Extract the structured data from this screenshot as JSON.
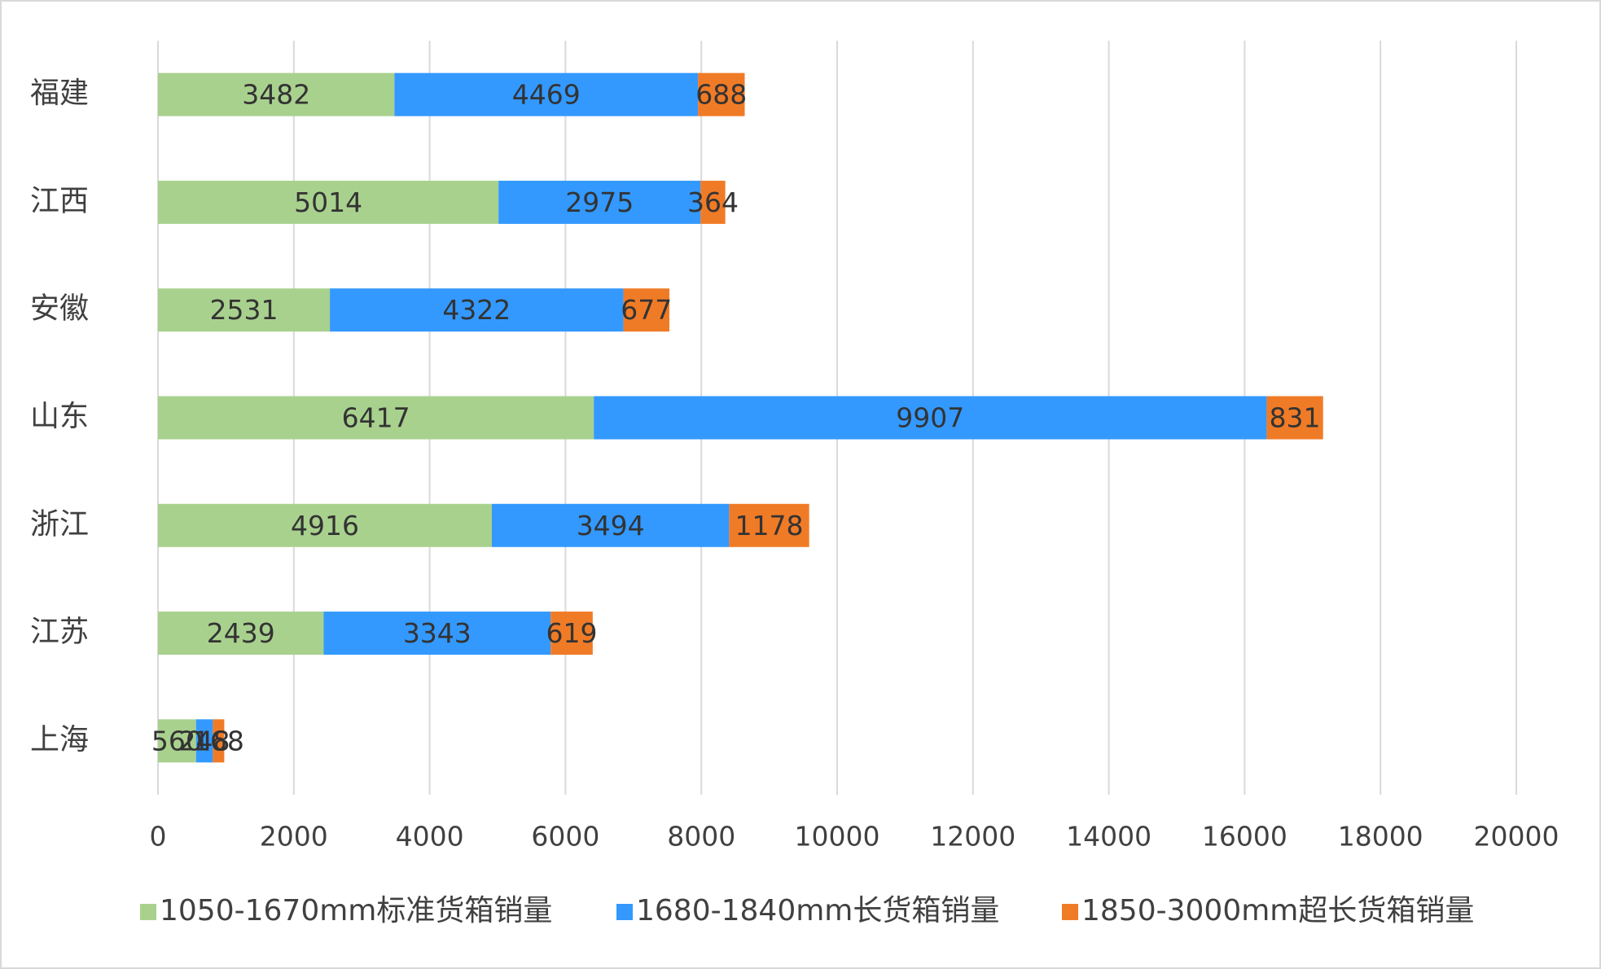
{
  "chart_data": {
    "type": "bar",
    "orientation": "horizontal",
    "stacked": true,
    "categories": [
      "福建",
      "江西",
      "安徽",
      "山东",
      "浙江",
      "江苏",
      "上海"
    ],
    "series": [
      {
        "name": "1050-1670mm标准货箱销量",
        "color": "#a9d18e",
        "values": [
          3482,
          5014,
          2531,
          6417,
          4916,
          2439,
          560
        ]
      },
      {
        "name": "1680-1840mm长货箱销量",
        "color": "#3399ff",
        "values": [
          4469,
          2975,
          4322,
          9907,
          3494,
          3343,
          248
        ]
      },
      {
        "name": "1850-3000mm超长货箱销量",
        "color": "#f07b26",
        "values": [
          688,
          364,
          677,
          831,
          1178,
          619,
          168
        ]
      }
    ],
    "xlim": [
      0,
      20000
    ],
    "xticks": [
      0,
      2000,
      4000,
      6000,
      8000,
      10000,
      12000,
      14000,
      16000,
      18000,
      20000
    ],
    "grid": true,
    "legend": "bottom"
  }
}
